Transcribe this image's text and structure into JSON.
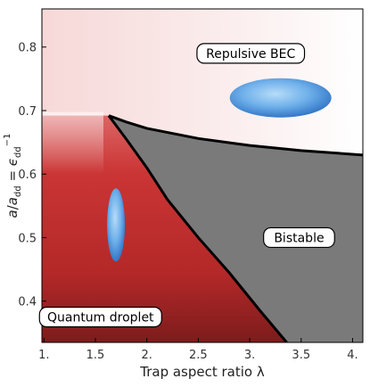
{
  "chart_data": {
    "type": "phase_diagram",
    "title": "",
    "xlabel": "Trap aspect ratio λ",
    "ylabel": "a/a_dd = ε_dd^-1",
    "xlim": [
      0.98,
      4.1
    ],
    "ylim": [
      0.335,
      0.86
    ],
    "xticks": [
      {
        "value": 1.0,
        "label": "1."
      },
      {
        "value": 1.5,
        "label": "1.5"
      },
      {
        "value": 2.0,
        "label": "2."
      },
      {
        "value": 2.5,
        "label": "2.5"
      },
      {
        "value": 3.0,
        "label": "3."
      },
      {
        "value": 3.5,
        "label": "3.5"
      },
      {
        "value": 4.0,
        "label": "4."
      }
    ],
    "yticks": [
      {
        "value": 0.4,
        "label": "0.4"
      },
      {
        "value": 0.5,
        "label": "0.5"
      },
      {
        "value": 0.6,
        "label": "0.6"
      },
      {
        "value": 0.7,
        "label": "0.7"
      },
      {
        "value": 0.8,
        "label": "0.8"
      }
    ],
    "boundaries": {
      "upper": {
        "x": [
          1.63,
          1.8,
          2.0,
          2.5,
          3.0,
          3.5,
          4.1
        ],
        "y": [
          0.692,
          0.682,
          0.672,
          0.656,
          0.645,
          0.637,
          0.63
        ]
      },
      "lower": {
        "x": [
          1.63,
          1.8,
          2.0,
          2.2,
          2.5,
          2.8,
          3.1,
          3.36
        ],
        "y": [
          0.692,
          0.655,
          0.61,
          0.56,
          0.5,
          0.445,
          0.385,
          0.335
        ]
      },
      "tip": {
        "x": 1.63,
        "y": 0.692
      }
    },
    "regions": [
      {
        "label": "Repulsive BEC",
        "x": 3.01,
        "y": 0.79,
        "color": "#fbecec"
      },
      {
        "label": "Bistable",
        "x": 3.48,
        "y": 0.5,
        "color": "#7a7a7a"
      },
      {
        "label": "Quantum droplet",
        "x": 1.55,
        "y": 0.375,
        "color": "#c93535"
      }
    ],
    "insets": [
      {
        "name": "elongated-condensate",
        "x": 1.7,
        "y": 0.52,
        "shape": "prolate"
      },
      {
        "name": "flattened-condensate",
        "x": 3.3,
        "y": 0.72,
        "shape": "oblate"
      }
    ],
    "colors": {
      "droplet": "#c93535",
      "droplet_dark": "#8a1c1c",
      "bec": "#fbecec",
      "bistable": "#7a7a7a",
      "boundary": "#000000",
      "condensate": "#5aa0e0"
    }
  }
}
